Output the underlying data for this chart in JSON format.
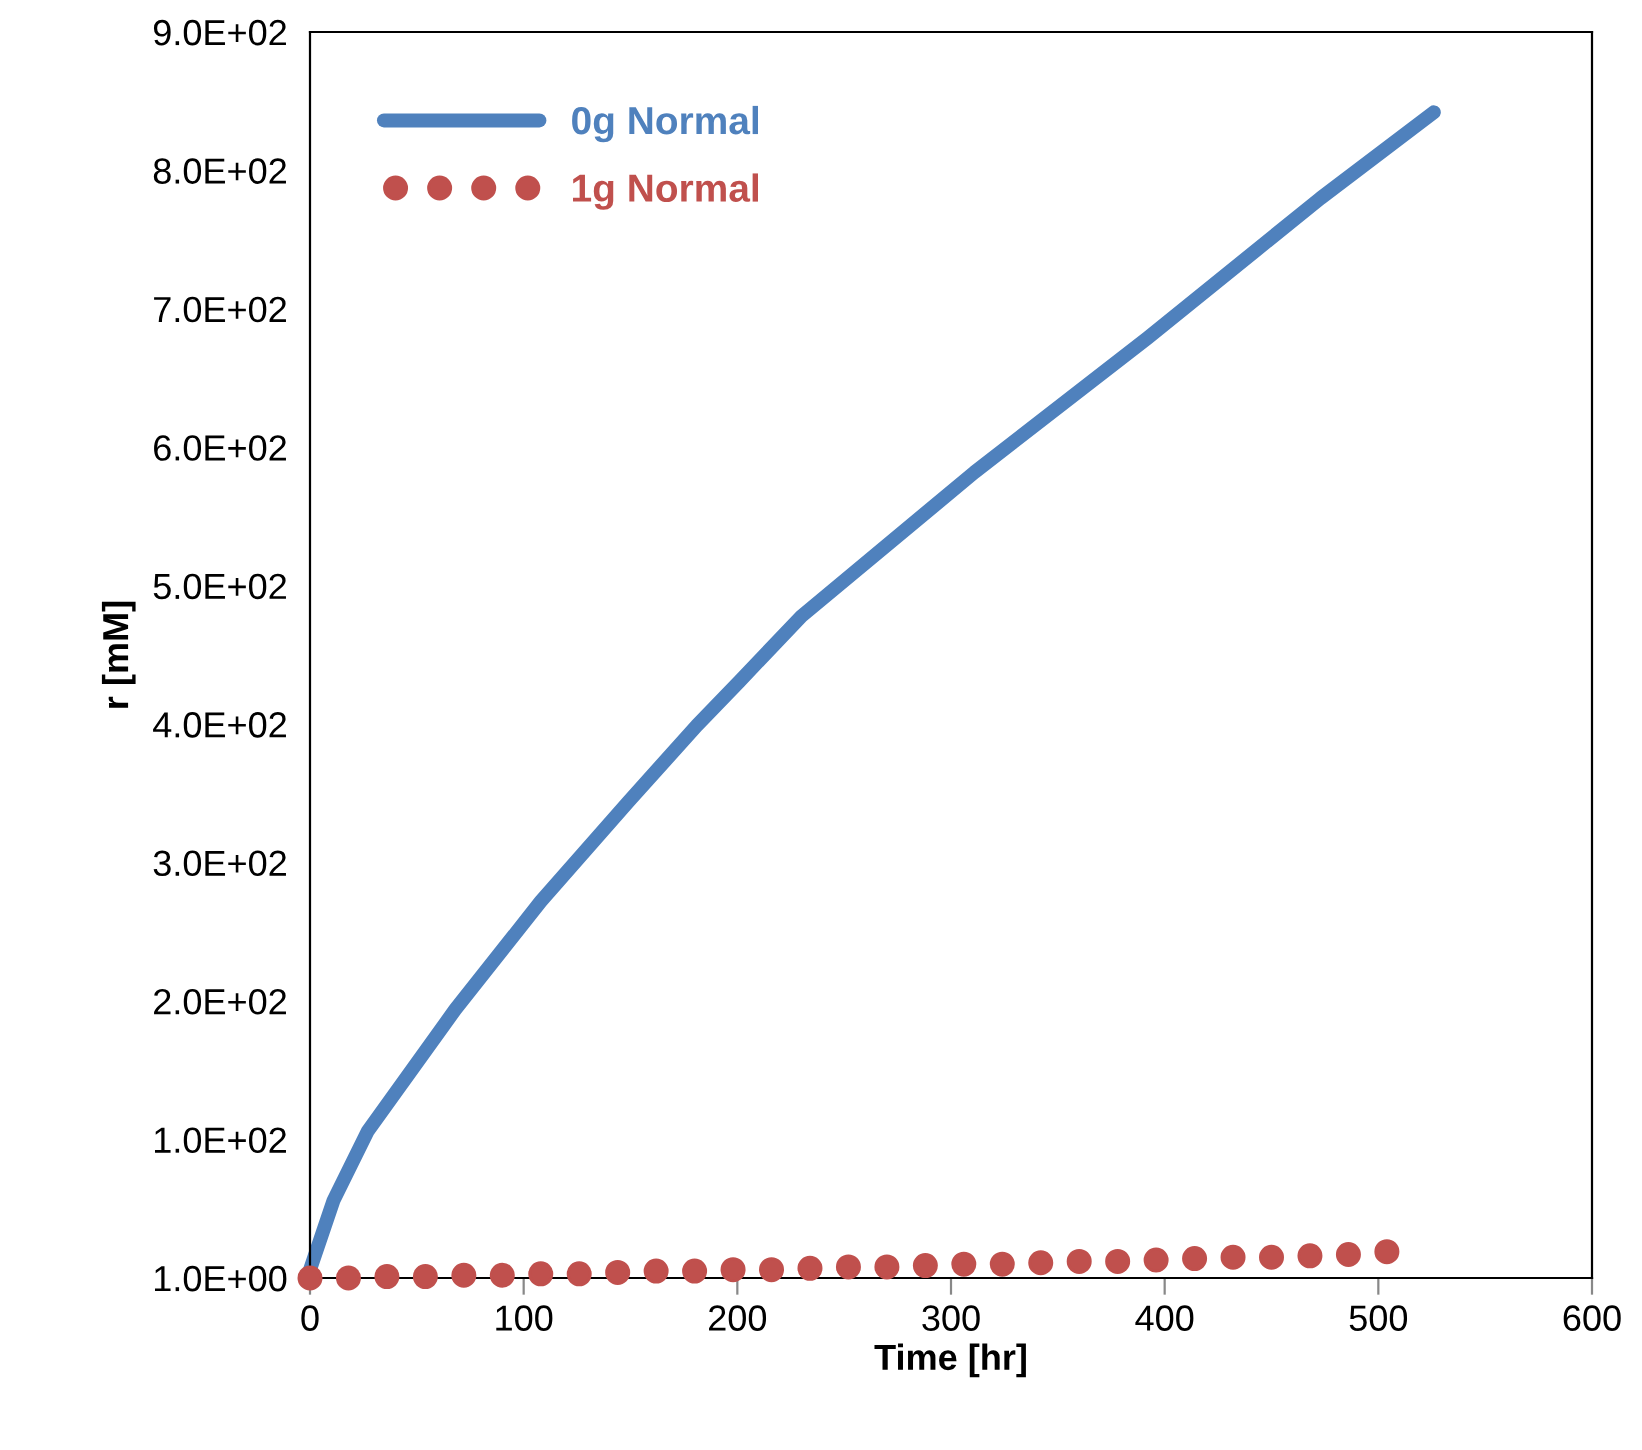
{
  "chart_data": {
    "type": "line",
    "xlabel": "Time [hr]",
    "ylabel": "r [mM]",
    "xlim": [
      0,
      600
    ],
    "xticks": [
      0,
      100,
      200,
      300,
      400,
      500,
      600
    ],
    "ylim": [
      1,
      901
    ],
    "yticks": [
      {
        "value": 1,
        "label": "1.0E+00"
      },
      {
        "value": 101,
        "label": "1.0E+02"
      },
      {
        "value": 201,
        "label": "2.0E+02"
      },
      {
        "value": 301,
        "label": "3.0E+02"
      },
      {
        "value": 401,
        "label": "4.0E+02"
      },
      {
        "value": 501,
        "label": "5.0E+02"
      },
      {
        "value": 601,
        "label": "6.0E+02"
      },
      {
        "value": 701,
        "label": "7.0E+02"
      },
      {
        "value": 801,
        "label": "8.0E+02"
      },
      {
        "value": 901,
        "label": "9.0E+02"
      }
    ],
    "grid": false,
    "legend": "top left",
    "series": [
      {
        "name": "0g Normal",
        "color": "#4f81bd",
        "line_style": "solid",
        "marker": "none",
        "x": [
          0,
          11,
          27,
          68,
          108,
          149,
          181,
          201,
          230,
          311,
          392,
          473,
          526
        ],
        "values": [
          7,
          57,
          107,
          195,
          273,
          345,
          400,
          432,
          479,
          583,
          680,
          781,
          843
        ]
      },
      {
        "name": "1g Normal",
        "type": "scatter",
        "color": "#c0504d",
        "marker": "circle",
        "x": [
          0,
          18,
          36,
          54,
          72,
          90,
          108,
          126,
          144,
          162,
          180,
          198,
          216,
          234,
          252,
          270,
          288,
          306,
          324,
          342,
          360,
          378,
          396,
          414,
          432,
          450,
          468,
          486,
          504
        ],
        "values": [
          1,
          1,
          2,
          2,
          3,
          3,
          4,
          4,
          5,
          6,
          6,
          7,
          7,
          8,
          9,
          9,
          10,
          11,
          11,
          12,
          13,
          13,
          14,
          15,
          16,
          16,
          17,
          18,
          20
        ]
      }
    ]
  }
}
